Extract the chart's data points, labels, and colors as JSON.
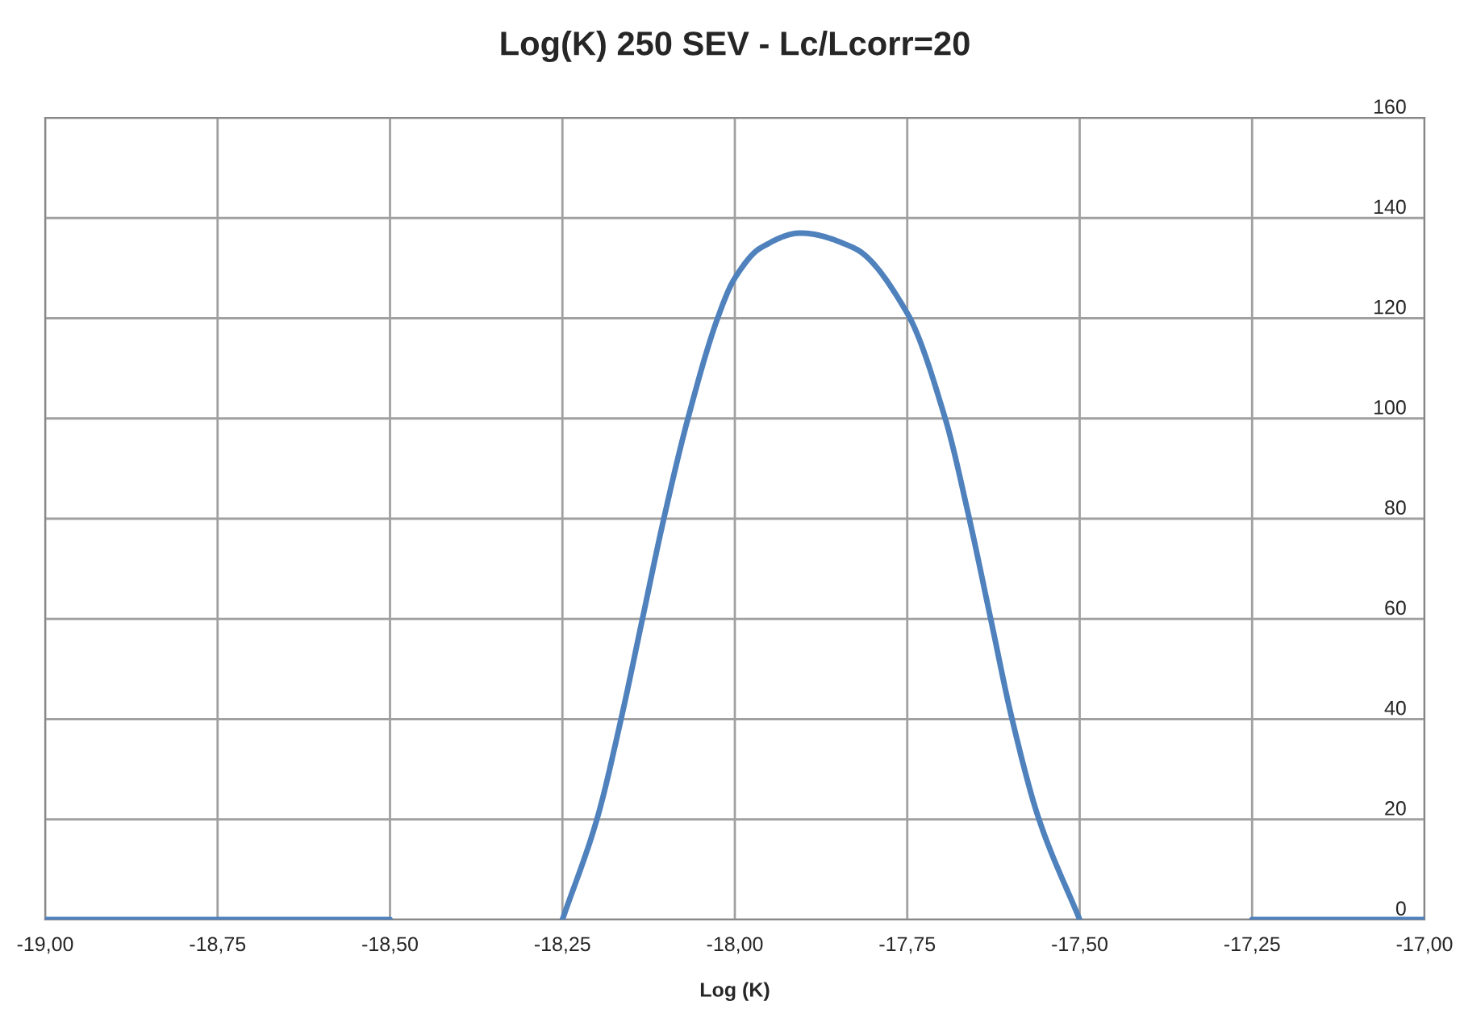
{
  "chart_data": {
    "type": "line",
    "title": "Log(K) 250 SEV - Lc/Lcorr=20",
    "xlabel": "Log (K)",
    "series": [
      {
        "color": "#4f81bd",
        "x": [
          -19,
          -18.75,
          -18.5,
          -18.375,
          -18.25,
          -18.2,
          -18.165,
          -18.134,
          -18.103,
          -18.068,
          -18.025,
          -18.0,
          -17.963,
          -17.905,
          -17.827,
          -17.75,
          -17.695,
          -17.66,
          -17.629,
          -17.598,
          -17.559,
          -17.5,
          -17.375,
          -17.25,
          -17
        ],
        "values": [
          0,
          0,
          0,
          null,
          0,
          20,
          40,
          60,
          80,
          100,
          120,
          128,
          134,
          137,
          134,
          121,
          100,
          80,
          60,
          40,
          20,
          0,
          null,
          0,
          0
        ]
      }
    ],
    "xlim": [
      -19,
      -17
    ],
    "ylim": [
      0,
      160
    ],
    "xticks": [
      {
        "value": -19,
        "label": "-19,00"
      },
      {
        "value": -18.75,
        "label": "-18,75"
      },
      {
        "value": -18.5,
        "label": "-18,50"
      },
      {
        "value": -18.25,
        "label": "-18,25"
      },
      {
        "value": -18,
        "label": "-18,00"
      },
      {
        "value": -17.75,
        "label": "-17,75"
      },
      {
        "value": -17.5,
        "label": "-17,50"
      },
      {
        "value": -17.25,
        "label": "-17,25"
      },
      {
        "value": -17,
        "label": "-17,00"
      }
    ],
    "yticks": [
      0,
      20,
      40,
      60,
      80,
      100,
      120,
      140,
      160
    ],
    "grid": true,
    "marker": "none",
    "line_style": "solid"
  }
}
